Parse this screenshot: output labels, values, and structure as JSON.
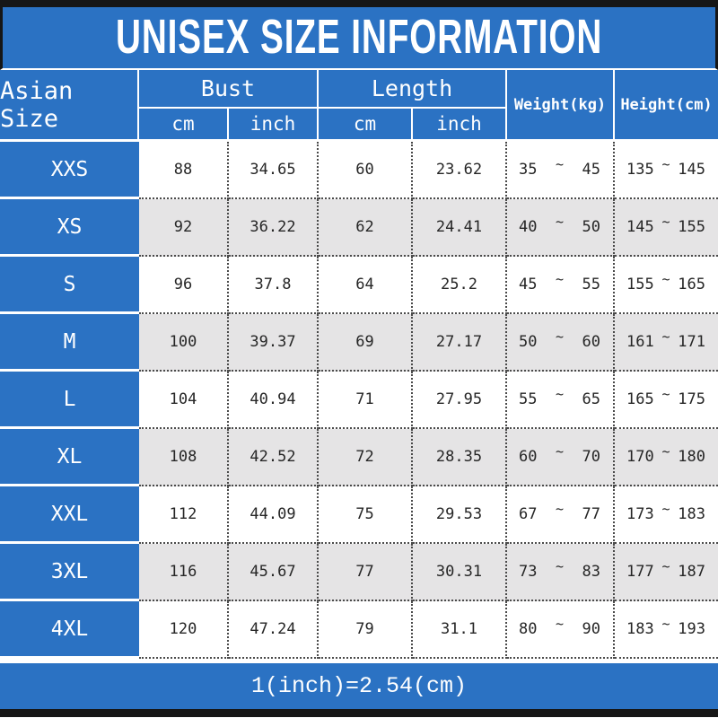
{
  "title": "UNISEX SIZE INFORMATION",
  "footer_note": "1(inch)=2.54(cm)",
  "colors": {
    "blue": "#2b72c3",
    "top_bottom_bar": "#161616",
    "alt_row": "#e5e4e5",
    "dotted_border": "#4a4a4a"
  },
  "table": {
    "tilde": "~",
    "headers": {
      "size": "Asian Size",
      "bust": "Bust",
      "length": "Length",
      "weight": "Weight(kg)",
      "height": "Height(cm)",
      "bust_cm": "cm",
      "bust_inch": "inch",
      "length_cm": "cm",
      "length_inch": "inch"
    },
    "rows": [
      {
        "size": "XXS",
        "bust_cm": "88",
        "bust_inch": "34.65",
        "length_cm": "60",
        "length_inch": "23.62",
        "weight_min": "35",
        "weight_max": "45",
        "height_min": "135",
        "height_max": "145"
      },
      {
        "size": "XS",
        "bust_cm": "92",
        "bust_inch": "36.22",
        "length_cm": "62",
        "length_inch": "24.41",
        "weight_min": "40",
        "weight_max": "50",
        "height_min": "145",
        "height_max": "155"
      },
      {
        "size": "S",
        "bust_cm": "96",
        "bust_inch": "37.8",
        "length_cm": "64",
        "length_inch": "25.2",
        "weight_min": "45",
        "weight_max": "55",
        "height_min": "155",
        "height_max": "165"
      },
      {
        "size": "M",
        "bust_cm": "100",
        "bust_inch": "39.37",
        "length_cm": "69",
        "length_inch": "27.17",
        "weight_min": "50",
        "weight_max": "60",
        "height_min": "161",
        "height_max": "171"
      },
      {
        "size": "L",
        "bust_cm": "104",
        "bust_inch": "40.94",
        "length_cm": "71",
        "length_inch": "27.95",
        "weight_min": "55",
        "weight_max": "65",
        "height_min": "165",
        "height_max": "175"
      },
      {
        "size": "XL",
        "bust_cm": "108",
        "bust_inch": "42.52",
        "length_cm": "72",
        "length_inch": "28.35",
        "weight_min": "60",
        "weight_max": "70",
        "height_min": "170",
        "height_max": "180"
      },
      {
        "size": "XXL",
        "bust_cm": "112",
        "bust_inch": "44.09",
        "length_cm": "75",
        "length_inch": "29.53",
        "weight_min": "67",
        "weight_max": "77",
        "height_min": "173",
        "height_max": "183"
      },
      {
        "size": "3XL",
        "bust_cm": "116",
        "bust_inch": "45.67",
        "length_cm": "77",
        "length_inch": "30.31",
        "weight_min": "73",
        "weight_max": "83",
        "height_min": "177",
        "height_max": "187"
      },
      {
        "size": "4XL",
        "bust_cm": "120",
        "bust_inch": "47.24",
        "length_cm": "79",
        "length_inch": "31.1",
        "weight_min": "80",
        "weight_max": "90",
        "height_min": "183",
        "height_max": "193"
      }
    ]
  }
}
